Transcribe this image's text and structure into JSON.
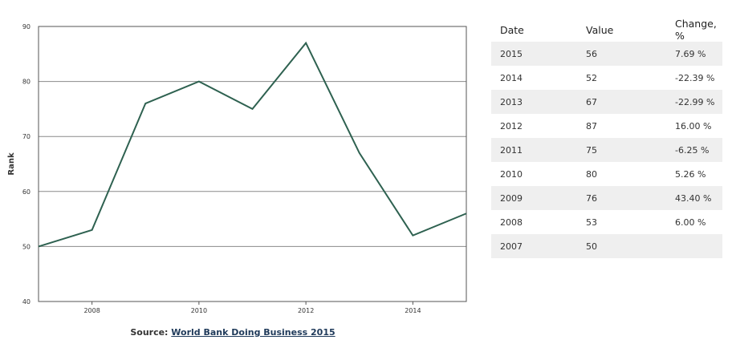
{
  "chart_data": {
    "type": "line",
    "x": [
      2007,
      2008,
      2009,
      2010,
      2011,
      2012,
      2013,
      2014,
      2015
    ],
    "series": [
      {
        "values": [
          50,
          53,
          76,
          80,
          75,
          87,
          67,
          52,
          56
        ]
      }
    ],
    "xticks": [
      "2008",
      "2010",
      "2012",
      "2014"
    ],
    "yticks": [
      "40",
      "50",
      "60",
      "70",
      "80",
      "90"
    ],
    "xlim": [
      2007,
      2015
    ],
    "ylim": [
      40,
      90
    ],
    "ylabel": "Rank",
    "xlabel": "",
    "grid": "horizontal",
    "line_color": "#2e6150"
  },
  "source": {
    "prefix": "Source: ",
    "link_text": "World Bank Doing Business 2015"
  },
  "table": {
    "headers": [
      "Date",
      "Value",
      "Change, %"
    ],
    "rows": [
      [
        "2015",
        "56",
        "7.69 %"
      ],
      [
        "2014",
        "52",
        "-22.39 %"
      ],
      [
        "2013",
        "67",
        "-22.99 %"
      ],
      [
        "2012",
        "87",
        "16.00 %"
      ],
      [
        "2011",
        "75",
        "-6.25 %"
      ],
      [
        "2010",
        "80",
        "5.26 %"
      ],
      [
        "2009",
        "76",
        "43.40 %"
      ],
      [
        "2008",
        "53",
        "6.00 %"
      ],
      [
        "2007",
        "50",
        ""
      ]
    ]
  }
}
